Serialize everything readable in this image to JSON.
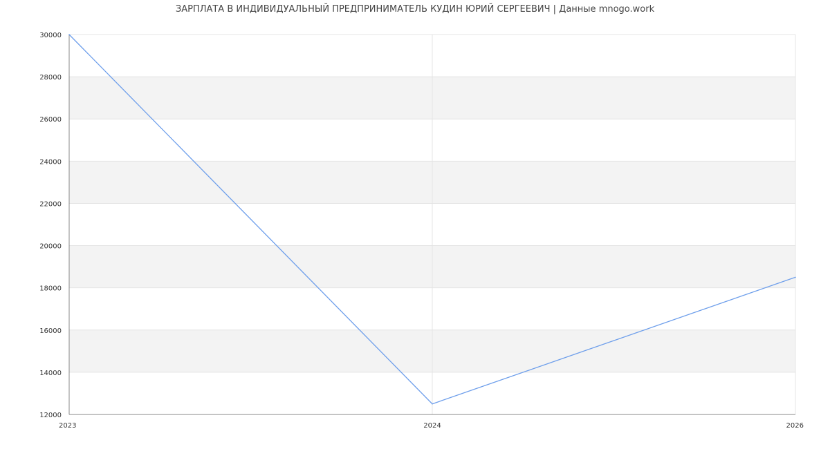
{
  "title": "ЗАРПЛАТА В ИНДИВИДУАЛЬНЫЙ ПРЕДПРИНИМАТЕЛЬ КУДИН ЮРИЙ СЕРГЕЕВИЧ | Данные mnogo.work",
  "chart_data": {
    "type": "line",
    "title": "ЗАРПЛАТА В ИНДИВИДУАЛЬНЫЙ ПРЕДПРИНИМАТЕЛЬ КУДИН ЮРИЙ СЕРГЕЕВИЧ | Данные mnogo.work",
    "categories": [
      "2023",
      "2024",
      "2026"
    ],
    "series": [
      {
        "values": [
          30000,
          12500,
          18500
        ],
        "color": "#6d9eeb"
      }
    ],
    "ylim": [
      12000,
      30000
    ],
    "yticks": [
      "12000",
      "14000",
      "16000",
      "18000",
      "20000",
      "22000",
      "24000",
      "26000",
      "28000",
      "30000"
    ],
    "grid": true,
    "band_color": "#f3f3f3",
    "legend": "none"
  }
}
